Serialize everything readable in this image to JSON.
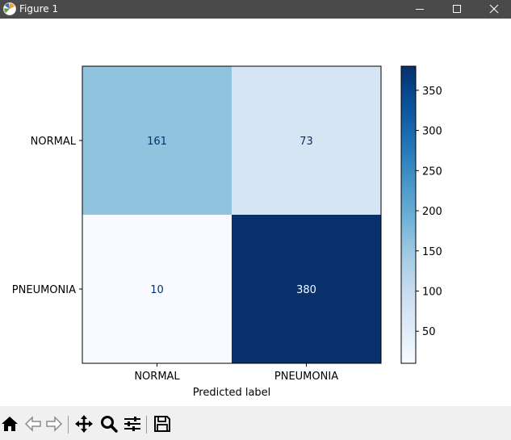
{
  "window": {
    "title": "Figure 1"
  },
  "toolbar": {
    "buttons": [
      {
        "name": "home-button",
        "icon": "home-icon"
      },
      {
        "name": "back-button",
        "icon": "arrow-left-icon"
      },
      {
        "name": "forward-button",
        "icon": "arrow-right-icon"
      },
      {
        "name": "pan-button",
        "icon": "move-icon"
      },
      {
        "name": "zoom-button",
        "icon": "magnifier-icon"
      },
      {
        "name": "configure-subplots-button",
        "icon": "sliders-icon"
      },
      {
        "name": "save-button",
        "icon": "floppy-disk-icon"
      }
    ]
  },
  "chart_data": {
    "type": "heatmap",
    "title": "",
    "xlabel": "Predicted label",
    "ylabel": "",
    "x_categories": [
      "NORMAL",
      "PNEUMONIA"
    ],
    "y_categories": [
      "NORMAL",
      "PNEUMONIA"
    ],
    "values": [
      [
        161,
        73
      ],
      [
        10,
        380
      ]
    ],
    "colormap": "Blues",
    "vmin": 10,
    "vmax": 380,
    "colorbar_ticks": [
      50,
      100,
      150,
      200,
      250,
      300,
      350
    ]
  }
}
